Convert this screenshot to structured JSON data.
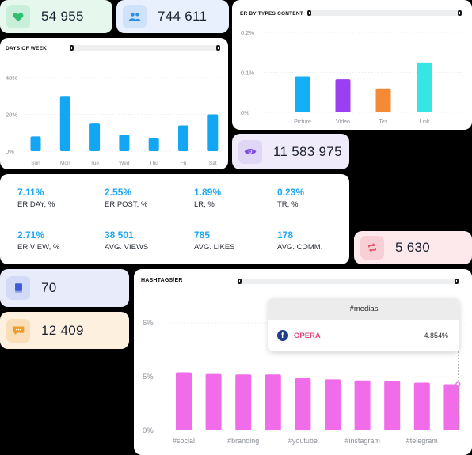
{
  "stats": {
    "likes": {
      "value": "54 955",
      "icon": "heart-icon",
      "bg": "#e6f7ee",
      "iconbg": "#c9eed9",
      "iconcolor": "#2fbf71"
    },
    "followers": {
      "value": "744 611",
      "icon": "users-icon",
      "bg": "#e7f0fc",
      "iconbg": "#cfe2f8",
      "iconcolor": "#2d8ee8"
    },
    "views": {
      "value": "11 583 975",
      "icon": "eye-icon",
      "bg": "#f0ebfb",
      "iconbg": "#e0d6f6",
      "iconcolor": "#7c4ddf"
    },
    "reposts": {
      "value": "5 630",
      "icon": "repost-icon",
      "bg": "#fde9ec",
      "iconbg": "#f9cfd6",
      "iconcolor": "#e64462"
    },
    "posts": {
      "value": "70",
      "icon": "book-icon",
      "bg": "#e8ecfa",
      "iconbg": "#d2daf6",
      "iconcolor": "#3d5bd8"
    },
    "comments": {
      "value": "12 409",
      "icon": "comment-icon",
      "bg": "#fdf0df",
      "iconbg": "#f9deb8",
      "iconcolor": "#ef9b2c"
    }
  },
  "days_panel": {
    "title": "DAYS OF WEEK",
    "chart_data": {
      "type": "bar",
      "categories": [
        "Sun",
        "Mon",
        "Tue",
        "Wed",
        "Thu",
        "Fri",
        "Sat"
      ],
      "values": [
        8,
        30,
        15,
        9,
        7,
        14,
        20
      ],
      "yticks": [
        "0%",
        "20%",
        "40%"
      ],
      "ylim": [
        0,
        40
      ],
      "color": "#12a6f5",
      "grid": true
    }
  },
  "types_panel": {
    "title": "ER BY TYPES CONTENT",
    "chart_data": {
      "type": "bar",
      "categories": [
        "Picture",
        "Video",
        "Tex",
        "Link"
      ],
      "values": [
        0.09,
        0.083,
        0.06,
        0.125
      ],
      "colors": [
        "#15aff5",
        "#9b3ff2",
        "#f48a35",
        "#36e6e2"
      ],
      "yticks": [
        "0%",
        "0.1%",
        "0.2%"
      ],
      "ylim": [
        0,
        0.2
      ],
      "grid": true
    }
  },
  "kpis": [
    {
      "value": "7.11%",
      "label": "ER DAY, %"
    },
    {
      "value": "2.55%",
      "label": "ER POST, %"
    },
    {
      "value": "1.89%",
      "label": "LR, %"
    },
    {
      "value": "0.23%",
      "label": "TR, %"
    },
    {
      "value": "2.71%",
      "label": "ER VIEW, %"
    },
    {
      "value": "38 501",
      "label": "AVG. VIEWS"
    },
    {
      "value": "785",
      "label": "AVG. LIKES"
    },
    {
      "value": "178",
      "label": "AVG. COMM."
    }
  ],
  "hashtags_panel": {
    "title": "HASHTAGS/ER",
    "tooltip": {
      "header": "#medias",
      "source": "OPERA",
      "value": "4.854%",
      "icon": "facebook-icon"
    },
    "chart_data": {
      "type": "bar",
      "values": [
        5.4,
        5.25,
        5.2,
        5.2,
        4.85,
        4.75,
        4.65,
        4.6,
        4.45,
        4.3
      ],
      "xlabels": [
        "#social",
        "#branding",
        "#youtube",
        "#instagram",
        "#telegram"
      ],
      "yticks": [
        "0%",
        "5%",
        "6%"
      ],
      "color": "#f06ce9",
      "grid": true
    }
  }
}
